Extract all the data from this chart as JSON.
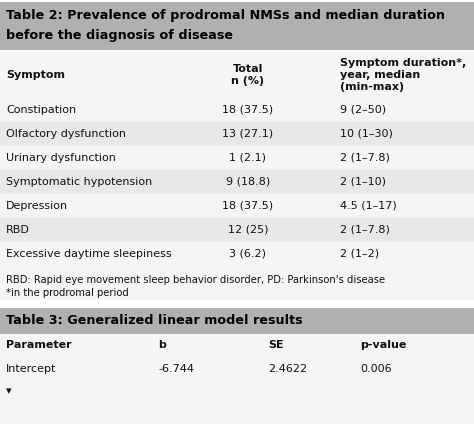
{
  "table2_title_line1": "Table 2: Prevalence of prodromal NMSs and median duration",
  "table2_title_line2": "before the diagnosis of disease",
  "table2_col0_header": "Symptom",
  "table2_col1_header": "Total\nn (%)",
  "table2_col2_header": "Symptom duration*,\nyear, median\n(min-max)",
  "table2_rows": [
    [
      "Constipation",
      "18 (37.5)",
      "9 (2–50)"
    ],
    [
      "Olfactory dysfunction",
      "13 (27.1)",
      "10 (1–30)"
    ],
    [
      "Urinary dysfunction",
      "1 (2.1)",
      "2 (1–7.8)"
    ],
    [
      "Symptomatic hypotension",
      "9 (18.8)",
      "2 (1–10)"
    ],
    [
      "Depression",
      "18 (37.5)",
      "4.5 (1–17)"
    ],
    [
      "RBD",
      "12 (25)",
      "2 (1–7.8)"
    ],
    [
      "Excessive daytime sleepiness",
      "3 (6.2)",
      "2 (1–2)"
    ]
  ],
  "table2_footnote1": "RBD: Rapid eye movement sleep behavior disorder, PD: Parkinson's disease",
  "table2_footnote2": "*in the prodromal period",
  "table3_title": "Table 3: Generalized linear model results",
  "table3_headers": [
    "Parameter",
    "b",
    "SE",
    "p-value"
  ],
  "table3_rows": [
    [
      "Intercept",
      "-6.744",
      "2.4622",
      "0.006"
    ]
  ],
  "title_bg": "#b0b0b0",
  "row_bg_light": "#e8e8e8",
  "row_bg_mid": "#c8c8c8",
  "white_bg": "#f5f5f5",
  "text_color": "#111111",
  "font_size": 8.0,
  "title_font_size": 9.2,
  "fig_w": 4.74,
  "fig_h": 4.24,
  "dpi": 100
}
